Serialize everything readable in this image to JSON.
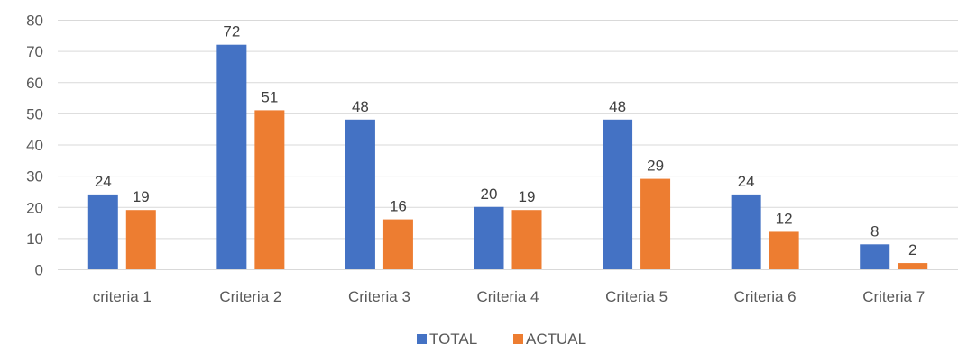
{
  "chart_data": {
    "type": "bar",
    "categories": [
      "criteria 1",
      "Criteria 2",
      "Criteria 3",
      "Criteria 4",
      "Criteria 5",
      "Criteria 6",
      "Criteria 7"
    ],
    "series": [
      {
        "name": "TOTAL",
        "values": [
          24,
          72,
          48,
          20,
          48,
          24,
          8
        ],
        "color": "#4472C4"
      },
      {
        "name": "ACTUAL",
        "values": [
          19,
          51,
          16,
          19,
          29,
          12,
          2
        ],
        "color": "#ED7D31"
      }
    ],
    "title": "",
    "xlabel": "",
    "ylabel": "",
    "ylim": [
      0,
      80
    ],
    "yticks": [
      0,
      10,
      20,
      30,
      40,
      50,
      60,
      70,
      80
    ],
    "grid": true,
    "legend": "bottom",
    "data_labels": true
  }
}
